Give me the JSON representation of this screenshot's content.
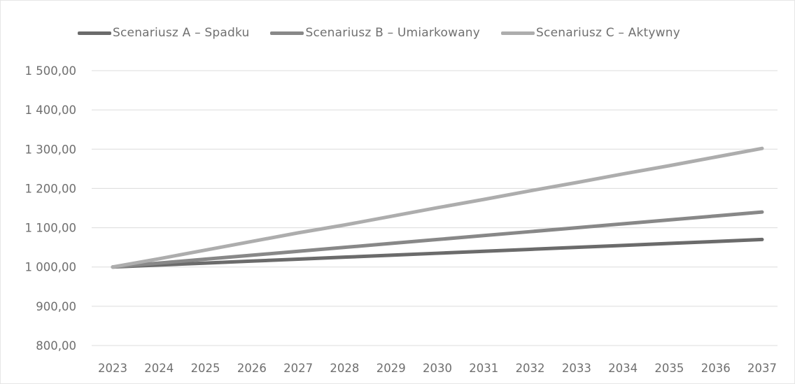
{
  "chart_data": {
    "type": "line",
    "title": "",
    "xlabel": "",
    "ylabel": "",
    "x": [
      "2023",
      "2024",
      "2025",
      "2026",
      "2027",
      "2028",
      "2029",
      "2030",
      "2031",
      "2032",
      "2033",
      "2034",
      "2035",
      "2036",
      "2037"
    ],
    "ylim": [
      800,
      1500
    ],
    "yticks": [
      "800,00",
      "900,00",
      "1 000,00",
      "1 100,00",
      "1 200,00",
      "1 300,00",
      "1 400,00",
      "1 500,00"
    ],
    "grid": true,
    "legend_position": "top",
    "series": [
      {
        "name": "Scenariusz A – Spadku",
        "color": "#6b6b6b",
        "values": [
          1000,
          1005,
          1010,
          1015,
          1020,
          1025,
          1030,
          1035,
          1040,
          1045,
          1050,
          1055,
          1060,
          1065,
          1070
        ]
      },
      {
        "name": "Scenariusz B – Umiarkowany",
        "color": "#888888",
        "values": [
          1000,
          1010,
          1020,
          1030,
          1040,
          1050,
          1060,
          1070,
          1080,
          1090,
          1100,
          1110,
          1120,
          1130,
          1140
        ]
      },
      {
        "name": "Scenariusz C – Aktywny",
        "color": "#adadad",
        "values": [
          1000,
          1021,
          1043,
          1065,
          1087,
          1107,
          1129,
          1151,
          1172,
          1194,
          1215,
          1237,
          1258,
          1280,
          1302
        ]
      }
    ]
  }
}
